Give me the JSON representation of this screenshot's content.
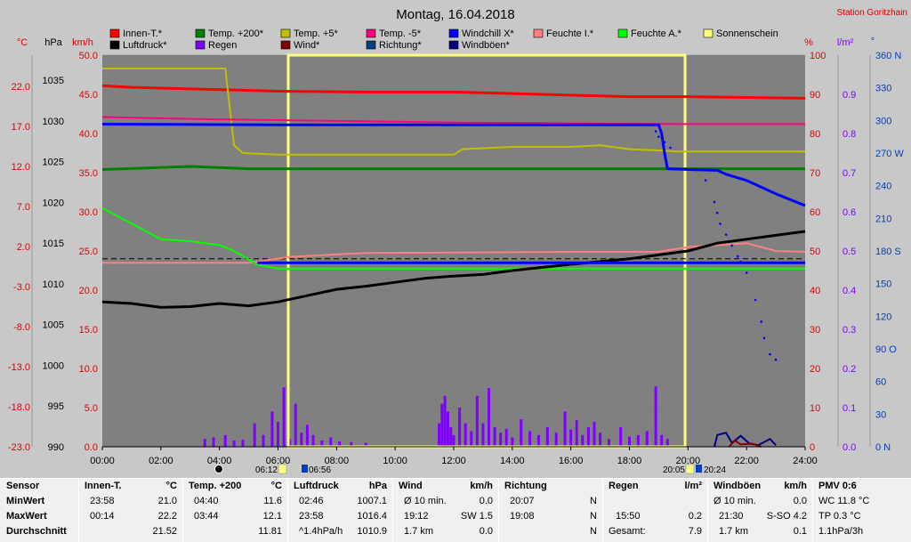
{
  "header": {
    "title": "Montag, 16.04.2018",
    "station": "Station Goritzhain"
  },
  "axis_units": {
    "temp": "°C",
    "pressure": "hPa",
    "wind": "km/h",
    "humidity": "%",
    "rain": "l/m²",
    "direction": "°"
  },
  "colors": {
    "plot_bg": "#808080",
    "page_bg": "#c8c8c8",
    "red_axis": "#e00000",
    "rain_axis": "#8000ff",
    "dir_axis": "#0040c0"
  },
  "legend": [
    {
      "label": "Innen-T.*",
      "color": "#ff0000"
    },
    {
      "label": "Temp. +200*",
      "color": "#008000"
    },
    {
      "label": "Temp. +5*",
      "color": "#c0c000"
    },
    {
      "label": "Temp. -5*",
      "color": "#ff0080"
    },
    {
      "label": "Windchill X*",
      "color": "#0000ff"
    },
    {
      "label": "Feuchte I.*",
      "color": "#ff8080"
    },
    {
      "label": "Feuchte A.*",
      "color": "#00ff00"
    },
    {
      "label": "Sonnenschein",
      "color": "#ffff80"
    },
    {
      "label": "Luftdruck*",
      "color": "#000000"
    },
    {
      "label": "Regen",
      "color": "#8000ff"
    },
    {
      "label": "Wind*",
      "color": "#800000"
    },
    {
      "label": "Richtung*",
      "color": "#004080"
    },
    {
      "label": "Windböen*",
      "color": "#000080"
    }
  ],
  "chart_data": {
    "type": "line",
    "x_ticks": [
      "00:00",
      "02:00",
      "04:00",
      "06:00",
      "08:00",
      "10:00",
      "12:00",
      "14:00",
      "16:00",
      "18:00",
      "20:00",
      "22:00",
      "24:00"
    ],
    "axes": {
      "temp_ticks": [
        "22.0",
        "17.0",
        "12.0",
        "7.0",
        "2.0",
        "-3.0",
        "-8.0",
        "-13.0",
        "-18.0",
        "-23.0"
      ],
      "pressure_ticks": [
        "1035",
        "1030",
        "1025",
        "1020",
        "1015",
        "1010",
        "1005",
        "1000",
        "995",
        "990"
      ],
      "wind_ticks": [
        "50.0",
        "45.0",
        "40.0",
        "35.0",
        "30.0",
        "25.0",
        "20.0",
        "15.0",
        "10.0",
        "5.0",
        "0.0"
      ],
      "humidity_ticks": [
        "100",
        "90",
        "80",
        "70",
        "60",
        "50",
        "40",
        "30",
        "20",
        "10",
        "0"
      ],
      "rain_ticks": [
        "0.9",
        "0.8",
        "0.7",
        "0.6",
        "0.5",
        "0.4",
        "0.3",
        "0.2",
        "0.1",
        "0.0"
      ],
      "direction_ticks": [
        "360 N",
        "330",
        "300",
        "270 W",
        "240",
        "210",
        "180 S",
        "150",
        "120",
        "90 O",
        "60",
        "30",
        "0 N"
      ],
      "wind_range": [
        0,
        50
      ],
      "humidity_range": [
        0,
        100
      ],
      "hour_range": [
        0,
        24
      ]
    },
    "sun": {
      "rise": "06:12",
      "set": "20:05",
      "sunshine_start_h": 6.35,
      "sunshine_end_h": 19.9
    },
    "moon": {
      "rise": "06:56",
      "set": "20:24"
    },
    "series": [
      {
        "name": "Innen-T.*",
        "color": "#ff0000",
        "scale": "wind",
        "width": 3,
        "points": [
          [
            0,
            46.1
          ],
          [
            1,
            45.9
          ],
          [
            4,
            45.6
          ],
          [
            6,
            45.4
          ],
          [
            9,
            45.3
          ],
          [
            12,
            45.3
          ],
          [
            14,
            45.1
          ],
          [
            16,
            44.9
          ],
          [
            18,
            44.7
          ],
          [
            20,
            44.7
          ],
          [
            22,
            44.6
          ],
          [
            24,
            44.5
          ]
        ]
      },
      {
        "name": "Temp. +200*",
        "color": "#008000",
        "scale": "wind",
        "width": 3,
        "points": [
          [
            0,
            35.4
          ],
          [
            3,
            35.8
          ],
          [
            5,
            35.5
          ],
          [
            8,
            35.5
          ],
          [
            12,
            35.5
          ],
          [
            16,
            35.5
          ],
          [
            20,
            35.5
          ],
          [
            24,
            35.5
          ]
        ]
      },
      {
        "name": "Temp. +5*",
        "color": "#c0c000",
        "scale": "wind",
        "width": 2,
        "points": [
          [
            0,
            48.3
          ],
          [
            4.2,
            48.3
          ],
          [
            4.3,
            45
          ],
          [
            4.5,
            38.5
          ],
          [
            4.8,
            37.5
          ],
          [
            6,
            37.3
          ],
          [
            9,
            37.3
          ],
          [
            12,
            37.3
          ],
          [
            12.3,
            38.0
          ],
          [
            14,
            38.3
          ],
          [
            16,
            38.3
          ],
          [
            17,
            38.5
          ],
          [
            18,
            38.0
          ],
          [
            19.2,
            37.8
          ],
          [
            19.6,
            37.7
          ],
          [
            24,
            37.7
          ]
        ]
      },
      {
        "name": "Temp. -5*",
        "color": "#ff0080",
        "scale": "wind",
        "width": 2,
        "points": [
          [
            0,
            42.1
          ],
          [
            4,
            41.8
          ],
          [
            8,
            41.6
          ],
          [
            12,
            41.4
          ],
          [
            16,
            41.3
          ],
          [
            20,
            41.2
          ],
          [
            24,
            41.2
          ]
        ]
      },
      {
        "name": "Windchill X*",
        "color": "#0000ff",
        "scale": "wind",
        "width": 3,
        "points": [
          [
            0,
            41.2
          ],
          [
            6,
            41.1
          ],
          [
            12,
            41.1
          ],
          [
            18,
            41.1
          ],
          [
            19.0,
            41.1
          ],
          [
            19.1,
            40.0
          ],
          [
            19.2,
            37.5
          ],
          [
            19.3,
            35.5
          ],
          [
            20,
            35.4
          ],
          [
            21,
            35.3
          ],
          [
            21.3,
            34.8
          ],
          [
            22,
            34.0
          ],
          [
            23,
            32.3
          ],
          [
            24,
            30.8
          ]
        ]
      },
      {
        "name": "Feuchte I.*",
        "color": "#ff8080",
        "scale": "humidity",
        "width": 2,
        "points": [
          [
            0,
            47
          ],
          [
            5,
            47
          ],
          [
            6.4,
            48.5
          ],
          [
            9,
            49.5
          ],
          [
            12,
            49.6
          ],
          [
            16,
            49.8
          ],
          [
            19,
            49.8
          ],
          [
            20,
            51
          ],
          [
            22,
            52
          ],
          [
            23,
            50
          ],
          [
            24,
            49.8
          ]
        ]
      },
      {
        "name": "Feuchte A.*",
        "color": "#00ff00",
        "scale": "humidity",
        "width": 2,
        "points": [
          [
            0,
            61
          ],
          [
            1,
            57
          ],
          [
            2,
            53
          ],
          [
            3,
            52.5
          ],
          [
            4,
            51.5
          ],
          [
            4.5,
            50
          ],
          [
            5.3,
            46.5
          ],
          [
            6,
            45.5
          ],
          [
            9,
            45.5
          ],
          [
            12,
            45.5
          ],
          [
            16,
            45.5
          ],
          [
            20,
            45.5
          ],
          [
            24,
            45.5
          ]
        ]
      },
      {
        "name": "Luftdruck*",
        "color": "#000000",
        "scale": "wind",
        "width": 3,
        "points": [
          [
            0,
            18.5
          ],
          [
            1,
            18.3
          ],
          [
            2,
            17.8
          ],
          [
            3,
            17.9
          ],
          [
            4,
            18.3
          ],
          [
            5,
            18.0
          ],
          [
            6,
            18.5
          ],
          [
            7,
            19.3
          ],
          [
            8,
            20.1
          ],
          [
            9,
            20.5
          ],
          [
            10,
            21.0
          ],
          [
            11,
            21.5
          ],
          [
            12,
            21.8
          ],
          [
            13,
            22.0
          ],
          [
            14,
            22.5
          ],
          [
            16,
            23.3
          ],
          [
            18,
            24.0
          ],
          [
            19,
            24.5
          ],
          [
            20,
            25.0
          ],
          [
            21,
            26.0
          ],
          [
            22,
            26.5
          ],
          [
            23,
            27.0
          ],
          [
            24,
            27.5
          ]
        ]
      },
      {
        "name": "Windchill ref",
        "color": "#0000ff",
        "scale": "humidity",
        "width": 3,
        "points": [
          [
            5.3,
            47
          ],
          [
            24,
            47
          ]
        ]
      }
    ],
    "ref_lines": [
      {
        "name": "reference dashed",
        "color": "#000000",
        "scale": "wind",
        "value": 24.0,
        "dash": "6,4"
      }
    ],
    "rain_bars": [
      [
        3.5,
        1
      ],
      [
        3.8,
        1.2
      ],
      [
        4.2,
        1.5
      ],
      [
        4.5,
        0.8
      ],
      [
        4.8,
        0.9
      ],
      [
        5.2,
        3
      ],
      [
        5.5,
        1.5
      ],
      [
        5.8,
        4.5
      ],
      [
        6.0,
        3.2
      ],
      [
        6.2,
        7.6
      ],
      [
        6.4,
        1
      ],
      [
        6.6,
        5.5
      ],
      [
        6.8,
        1.8
      ],
      [
        7.0,
        2.8
      ],
      [
        7.2,
        1.5
      ],
      [
        7.5,
        0.8
      ],
      [
        7.8,
        1.2
      ],
      [
        8.1,
        0.7
      ],
      [
        8.5,
        0.6
      ],
      [
        9.0,
        0.5
      ],
      [
        11.5,
        3
      ],
      [
        11.6,
        5.5
      ],
      [
        11.7,
        6.5
      ],
      [
        11.8,
        4.5
      ],
      [
        11.9,
        2.5
      ],
      [
        12.0,
        1.5
      ],
      [
        12.2,
        5
      ],
      [
        12.4,
        3
      ],
      [
        12.6,
        2
      ],
      [
        12.8,
        6.5
      ],
      [
        13.0,
        3
      ],
      [
        13.2,
        7.5
      ],
      [
        13.4,
        2.5
      ],
      [
        13.6,
        1.8
      ],
      [
        13.8,
        2.3
      ],
      [
        14.0,
        1.2
      ],
      [
        14.3,
        3.5
      ],
      [
        14.6,
        2
      ],
      [
        14.9,
        1.5
      ],
      [
        15.2,
        2.5
      ],
      [
        15.5,
        1.8
      ],
      [
        15.8,
        4.5
      ],
      [
        16.0,
        2.2
      ],
      [
        16.2,
        3.4
      ],
      [
        16.4,
        1.5
      ],
      [
        16.6,
        2.5
      ],
      [
        16.8,
        3.2
      ],
      [
        17.0,
        1.8
      ],
      [
        17.3,
        1
      ],
      [
        17.7,
        2.5
      ],
      [
        18.0,
        1.3
      ],
      [
        18.3,
        1.5
      ],
      [
        18.6,
        2
      ],
      [
        18.9,
        7.7
      ],
      [
        19.1,
        1.5
      ],
      [
        19.3,
        1
      ]
    ],
    "gust_segments": [
      [
        [
          20.9,
          0
        ],
        [
          21.0,
          1.5
        ],
        [
          21.3,
          1.8
        ],
        [
          21.5,
          0.5
        ],
        [
          21.8,
          1.4
        ],
        [
          22.1,
          0.4
        ],
        [
          22.4,
          0.2
        ],
        [
          22.8,
          1.0
        ],
        [
          23.0,
          0.2
        ]
      ]
    ],
    "wind_segments": [
      [
        [
          21.4,
          0
        ],
        [
          21.6,
          0.8
        ],
        [
          21.8,
          0.3
        ],
        [
          22.2,
          0.4
        ],
        [
          22.5,
          0
        ]
      ]
    ],
    "direction_dots": [
      [
        18.9,
        290
      ],
      [
        19.0,
        285
      ],
      [
        19.2,
        280
      ],
      [
        19.4,
        275
      ],
      [
        20.6,
        245
      ],
      [
        20.9,
        225
      ],
      [
        21.0,
        215
      ],
      [
        21.1,
        205
      ],
      [
        21.3,
        195
      ],
      [
        21.5,
        185
      ],
      [
        21.7,
        175
      ],
      [
        21.8,
        170
      ],
      [
        22.0,
        160
      ],
      [
        22.3,
        135
      ],
      [
        22.5,
        115
      ],
      [
        22.6,
        100
      ],
      [
        22.8,
        85
      ],
      [
        23.0,
        80
      ]
    ]
  },
  "stats": {
    "sensor": {
      "title": "Sensor",
      "rows": [
        "MinWert",
        "MaxWert",
        "Durchschnitt"
      ]
    },
    "innen": {
      "title": "Innen-T.",
      "unit": "°C",
      "rows": [
        [
          "23:58",
          "21.0"
        ],
        [
          "00:14",
          "22.2"
        ],
        [
          "",
          "21.52"
        ]
      ]
    },
    "temp200": {
      "title": "Temp. +200",
      "unit": "°C",
      "rows": [
        [
          "04:40",
          "11.6"
        ],
        [
          "03:44",
          "12.1"
        ],
        [
          "",
          "11.81"
        ]
      ]
    },
    "luftdruck": {
      "title": "Luftdruck",
      "unit": "hPa",
      "rows": [
        [
          "02:46",
          "1007.1"
        ],
        [
          "23:58",
          "1016.4"
        ],
        [
          "^1.4hPa/h",
          "1010.9"
        ]
      ]
    },
    "wind": {
      "title": "Wind",
      "unit": "km/h",
      "rows": [
        [
          "Ø 10 min.",
          "0.0"
        ],
        [
          "19:12",
          "SW 1.5"
        ],
        [
          "1.7 km",
          "0.0"
        ]
      ]
    },
    "richtung": {
      "title": "Richtung",
      "unit": "",
      "rows": [
        [
          "20:07",
          "N"
        ],
        [
          "19:08",
          "N"
        ],
        [
          "",
          "N"
        ]
      ]
    },
    "regen": {
      "title": "Regen",
      "unit": "l/m²",
      "rows": [
        [
          "",
          ""
        ],
        [
          "15:50",
          "0.2"
        ],
        [
          "Gesamt:",
          "7.9"
        ]
      ]
    },
    "boeen": {
      "title": "Windböen",
      "unit": "km/h",
      "rows": [
        [
          "Ø 10 min.",
          "0.0"
        ],
        [
          "21:30",
          "S-SO 4.2"
        ],
        [
          "1.7 km",
          "0.1"
        ]
      ]
    },
    "pmv": {
      "title": "PMV 0:6",
      "rows": [
        "WC 11.8 °C",
        "TP 0.3 °C",
        "1.1hPa/3h"
      ]
    }
  }
}
